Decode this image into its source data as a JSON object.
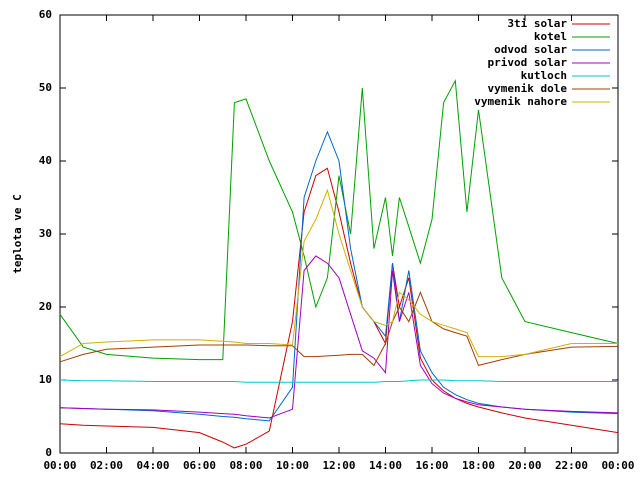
{
  "chart_data": {
    "type": "line",
    "y_label": "teplota ve C",
    "x": [
      0,
      1,
      2,
      4,
      6,
      7,
      7.5,
      8,
      9,
      10,
      10.5,
      11,
      11.5,
      12,
      12.5,
      13,
      13.5,
      14,
      14.3,
      14.6,
      15,
      15.5,
      16,
      16.5,
      17,
      17.5,
      18,
      19,
      20,
      22,
      24
    ],
    "xlim": [
      0,
      24
    ],
    "xticks": [
      {
        "value": 0,
        "label": "00:00"
      },
      {
        "value": 2,
        "label": "02:00"
      },
      {
        "value": 4,
        "label": "04:00"
      },
      {
        "value": 6,
        "label": "06:00"
      },
      {
        "value": 8,
        "label": "08:00"
      },
      {
        "value": 10,
        "label": "10:00"
      },
      {
        "value": 12,
        "label": "12:00"
      },
      {
        "value": 14,
        "label": "14:00"
      },
      {
        "value": 16,
        "label": "16:00"
      },
      {
        "value": 18,
        "label": "18:00"
      },
      {
        "value": 20,
        "label": "20:00"
      },
      {
        "value": 22,
        "label": "22:00"
      },
      {
        "value": 24,
        "label": "00:00"
      }
    ],
    "ylim": [
      0,
      60
    ],
    "yticks": [
      0,
      10,
      20,
      30,
      40,
      50,
      60
    ],
    "legend": "top-right",
    "series": [
      {
        "name": "3ti solar",
        "color": "#cc0000",
        "values": [
          4,
          3.8,
          3.7,
          3.5,
          2.8,
          1.5,
          0.7,
          1.2,
          3,
          18,
          33,
          38,
          39,
          33,
          26,
          20,
          18,
          15,
          26,
          20,
          24,
          13,
          10,
          8.5,
          7.5,
          6.8,
          6.3,
          5.5,
          4.8,
          3.8,
          2.8
        ]
      },
      {
        "name": "kotel",
        "color": "#00a000",
        "values": [
          19,
          14.5,
          13.5,
          13,
          12.8,
          12.8,
          48,
          48.5,
          40,
          33,
          27,
          20,
          24,
          38,
          30,
          50,
          28,
          35,
          27,
          35,
          31,
          26,
          32,
          48,
          51,
          33,
          47,
          24,
          18,
          16.5,
          15
        ]
      },
      {
        "name": "odvod solar",
        "color": "#0066cc",
        "values": [
          6.2,
          6.1,
          6,
          5.8,
          5.3,
          5,
          4.9,
          4.7,
          4.4,
          9,
          35,
          40,
          44,
          40,
          28,
          20,
          18,
          16,
          26,
          18,
          25,
          14,
          11,
          9,
          8,
          7.3,
          6.8,
          6.3,
          6,
          5.6,
          5.4
        ]
      },
      {
        "name": "privod solar",
        "color": "#a000c0",
        "values": [
          6.2,
          6.1,
          6,
          5.9,
          5.6,
          5.4,
          5.3,
          5.1,
          4.8,
          6,
          25,
          27,
          26,
          24,
          19,
          14,
          13,
          11,
          25,
          18,
          22,
          12,
          9.5,
          8.2,
          7.5,
          7,
          6.6,
          6.3,
          6,
          5.7,
          5.5
        ]
      },
      {
        "name": "kutloch",
        "color": "#00c8c8",
        "values": [
          10,
          9.9,
          9.9,
          9.8,
          9.8,
          9.8,
          9.8,
          9.7,
          9.7,
          9.7,
          9.7,
          9.7,
          9.7,
          9.7,
          9.7,
          9.7,
          9.7,
          9.8,
          9.8,
          9.8,
          9.9,
          10,
          10,
          10,
          9.9,
          9.9,
          9.9,
          9.8,
          9.8,
          9.8,
          9.8
        ]
      },
      {
        "name": "vymenik dole",
        "color": "#a04000",
        "values": [
          12.5,
          13.5,
          14.2,
          14.5,
          14.8,
          14.8,
          14.8,
          14.8,
          14.7,
          14.7,
          13.2,
          13.2,
          13.3,
          13.4,
          13.5,
          13.5,
          12,
          15,
          18,
          20,
          18,
          22,
          18,
          17,
          16.5,
          16,
          12,
          12.8,
          13.5,
          14.5,
          14.6
        ]
      },
      {
        "name": "vymenik nahore",
        "color": "#d0b000",
        "values": [
          13.2,
          15,
          15.2,
          15.5,
          15.5,
          15.3,
          15.2,
          15,
          15,
          14.8,
          29,
          32,
          36,
          30,
          25,
          20,
          18,
          17.5,
          18,
          22,
          21,
          19,
          18,
          17.5,
          17,
          16.5,
          13.2,
          13.2,
          13.5,
          15,
          15
        ]
      }
    ]
  }
}
